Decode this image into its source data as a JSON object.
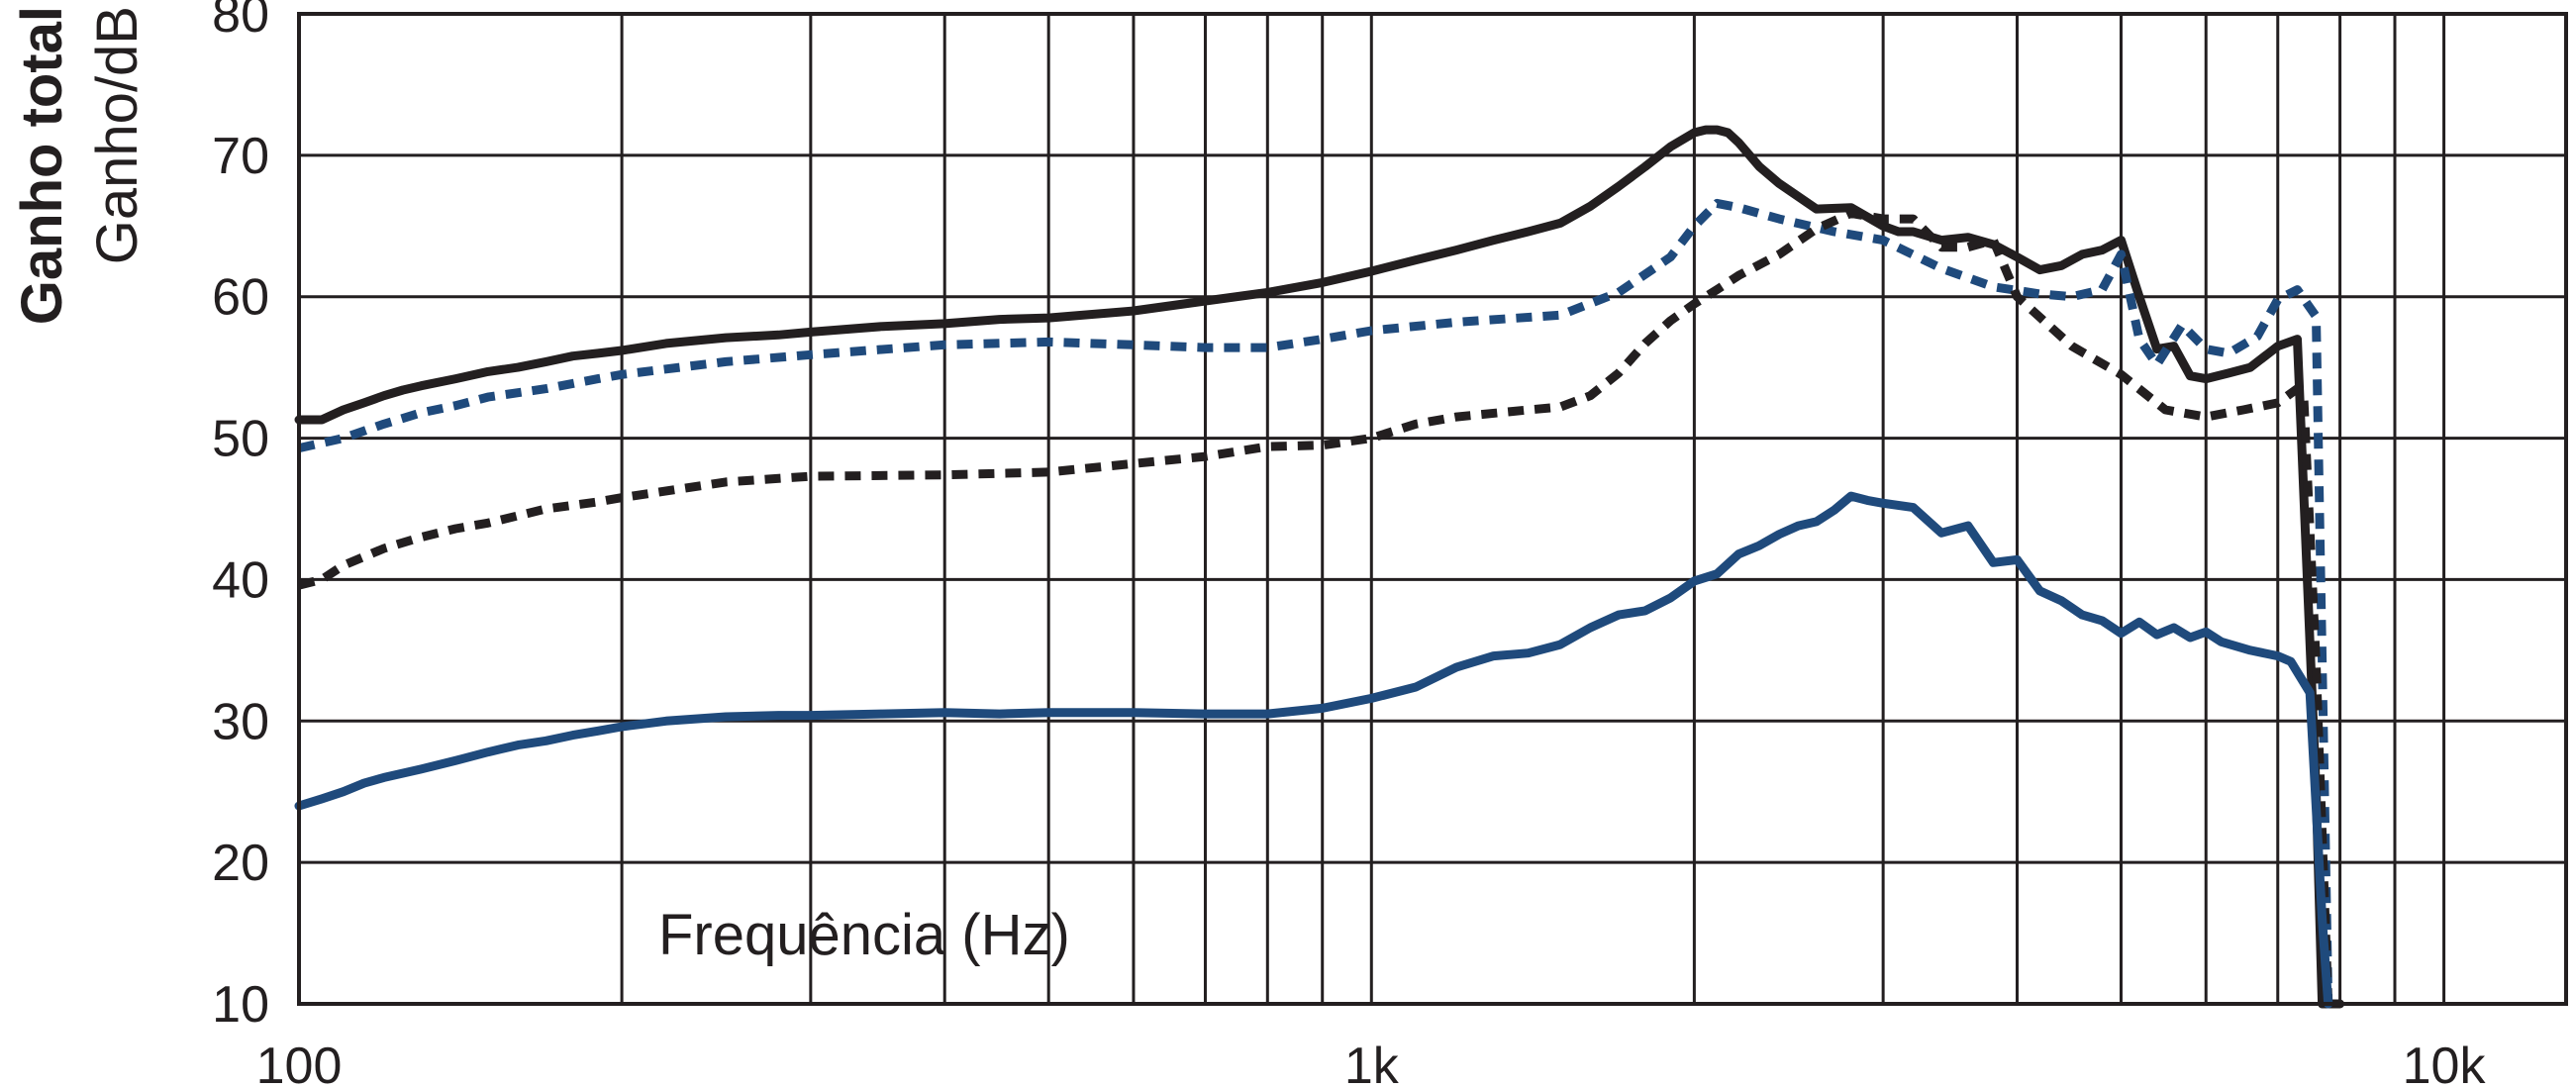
{
  "chart_data": {
    "type": "line",
    "ylabel_bold": "Ganho total",
    "ylabel": "Ganho/dB",
    "xlabel": "Frequência (Hz)",
    "xscale": "log",
    "xlim": [
      100,
      13000
    ],
    "ylim": [
      10,
      80
    ],
    "yticks": [
      10,
      20,
      30,
      40,
      50,
      60,
      70,
      80
    ],
    "ytick_labels": [
      "10",
      "20",
      "30",
      "40",
      "50",
      "60",
      "70",
      "80"
    ],
    "xticks": [
      100,
      1000,
      10000
    ],
    "xtick_labels": [
      "100",
      "1k",
      "10k"
    ],
    "x_gridlines": [
      200,
      300,
      400,
      500,
      600,
      700,
      800,
      900,
      1000,
      2000,
      3000,
      4000,
      5000,
      6000,
      7000,
      8000,
      9000,
      10000
    ],
    "grid": true,
    "legend": "none",
    "series": [
      {
        "color": "#231f20",
        "style": "solid",
        "x": [
          100,
          105,
          110,
          115,
          120,
          125,
          130,
          140,
          150,
          160,
          170,
          180,
          190,
          200,
          220,
          250,
          280,
          300,
          350,
          400,
          450,
          500,
          600,
          700,
          800,
          900,
          1000,
          1100,
          1200,
          1300,
          1400,
          1500,
          1600,
          1700,
          1800,
          1900,
          2000,
          2050,
          2100,
          2150,
          2200,
          2300,
          2400,
          2600,
          2800,
          3000,
          3100,
          3200,
          3400,
          3600,
          3800,
          4000,
          4200,
          4400,
          4600,
          4800,
          5000,
          5200,
          5400,
          5600,
          5800,
          6000,
          6300,
          6600,
          7000,
          7300,
          7600,
          7700,
          7750,
          8000
        ],
        "values": [
          51.3,
          51.3,
          52.0,
          52.5,
          53.0,
          53.4,
          53.7,
          54.2,
          54.7,
          55.0,
          55.4,
          55.8,
          56.0,
          56.2,
          56.7,
          57.1,
          57.3,
          57.5,
          57.9,
          58.1,
          58.4,
          58.5,
          59.0,
          59.7,
          60.3,
          61.0,
          61.8,
          62.6,
          63.3,
          64.0,
          64.6,
          65.2,
          66.4,
          67.8,
          69.2,
          70.6,
          71.6,
          71.8,
          71.8,
          71.6,
          70.9,
          69.2,
          68.0,
          66.2,
          66.3,
          65.0,
          64.6,
          64.6,
          64.0,
          64.2,
          63.7,
          62.8,
          61.9,
          62.2,
          63.0,
          63.3,
          64.0,
          60.0,
          56.3,
          56.5,
          54.4,
          54.2,
          54.6,
          55.0,
          56.5,
          57.0,
          25.0,
          10.0,
          10.0,
          10.0
        ]
      },
      {
        "color": "#1f4a7c",
        "style": "dashed",
        "x": [
          100,
          110,
          120,
          130,
          140,
          150,
          170,
          190,
          200,
          250,
          300,
          400,
          500,
          600,
          700,
          800,
          900,
          1000,
          1200,
          1500,
          1700,
          1900,
          2000,
          2100,
          2200,
          2400,
          2700,
          3000,
          3400,
          3800,
          4200,
          4500,
          4800,
          5000,
          5200,
          5400,
          5700,
          6000,
          6300,
          6700,
          7000,
          7300,
          7600,
          7800
        ],
        "values": [
          49.3,
          50.0,
          51.0,
          51.8,
          52.3,
          52.9,
          53.5,
          54.2,
          54.5,
          55.4,
          55.9,
          56.6,
          56.8,
          56.6,
          56.4,
          56.4,
          57.0,
          57.6,
          58.2,
          58.7,
          60.3,
          62.8,
          65.0,
          66.6,
          66.3,
          65.5,
          64.6,
          64.0,
          62.0,
          60.7,
          60.2,
          60.0,
          60.5,
          63.0,
          57.0,
          55.2,
          58.0,
          56.3,
          56.0,
          57.2,
          59.8,
          60.5,
          58.6,
          10.0
        ]
      },
      {
        "color": "#231f20",
        "style": "dashed",
        "x": [
          100,
          105,
          110,
          120,
          130,
          140,
          150,
          170,
          190,
          200,
          250,
          300,
          400,
          500,
          600,
          700,
          800,
          900,
          1000,
          1100,
          1200,
          1400,
          1500,
          1600,
          1700,
          1800,
          1900,
          2000,
          2100,
          2200,
          2400,
          2600,
          2800,
          3000,
          3200,
          3400,
          3600,
          3800,
          4000,
          4500,
          5000,
          5500,
          6000,
          6500,
          7000,
          7300,
          7400,
          7600,
          7800
        ],
        "values": [
          39.6,
          40.0,
          41.0,
          42.2,
          43.0,
          43.6,
          44.0,
          45.0,
          45.5,
          45.8,
          46.9,
          47.3,
          47.4,
          47.6,
          48.2,
          48.7,
          49.4,
          49.5,
          50.0,
          51.0,
          51.5,
          52.0,
          52.2,
          53.0,
          54.6,
          56.7,
          58.3,
          59.5,
          60.5,
          61.5,
          63.0,
          64.8,
          65.9,
          65.5,
          65.5,
          63.5,
          63.5,
          64.0,
          60.0,
          56.5,
          54.5,
          52.0,
          51.5,
          52.0,
          52.5,
          53.5,
          53.0,
          34.0,
          10.0
        ]
      },
      {
        "color": "#1f4a7c",
        "style": "solid",
        "x": [
          100,
          105,
          110,
          115,
          120,
          130,
          140,
          150,
          160,
          170,
          180,
          190,
          200,
          220,
          250,
          280,
          300,
          350,
          400,
          450,
          500,
          600,
          700,
          800,
          900,
          1000,
          1100,
          1200,
          1300,
          1400,
          1500,
          1600,
          1700,
          1800,
          1900,
          2000,
          2100,
          2200,
          2300,
          2400,
          2500,
          2600,
          2700,
          2800,
          2900,
          3000,
          3200,
          3400,
          3600,
          3800,
          4000,
          4200,
          4400,
          4600,
          4800,
          5000,
          5200,
          5400,
          5600,
          5800,
          6000,
          6200,
          6600,
          7000,
          7200,
          7500,
          7700,
          7800
        ],
        "values": [
          24.0,
          24.5,
          25.0,
          25.6,
          26.0,
          26.6,
          27.2,
          27.8,
          28.3,
          28.6,
          29.0,
          29.3,
          29.6,
          30.0,
          30.3,
          30.4,
          30.4,
          30.5,
          30.6,
          30.5,
          30.6,
          30.6,
          30.5,
          30.5,
          30.9,
          31.6,
          32.4,
          33.8,
          34.6,
          34.8,
          35.4,
          36.6,
          37.5,
          37.8,
          38.7,
          39.9,
          40.4,
          41.8,
          42.4,
          43.2,
          43.8,
          44.1,
          44.9,
          45.9,
          45.6,
          45.4,
          45.1,
          43.3,
          43.8,
          41.2,
          41.4,
          39.2,
          38.5,
          37.5,
          37.1,
          36.2,
          37.0,
          36.1,
          36.6,
          35.9,
          36.3,
          35.6,
          35.0,
          34.6,
          34.2,
          32.0,
          16.0,
          10.0
        ]
      }
    ]
  }
}
